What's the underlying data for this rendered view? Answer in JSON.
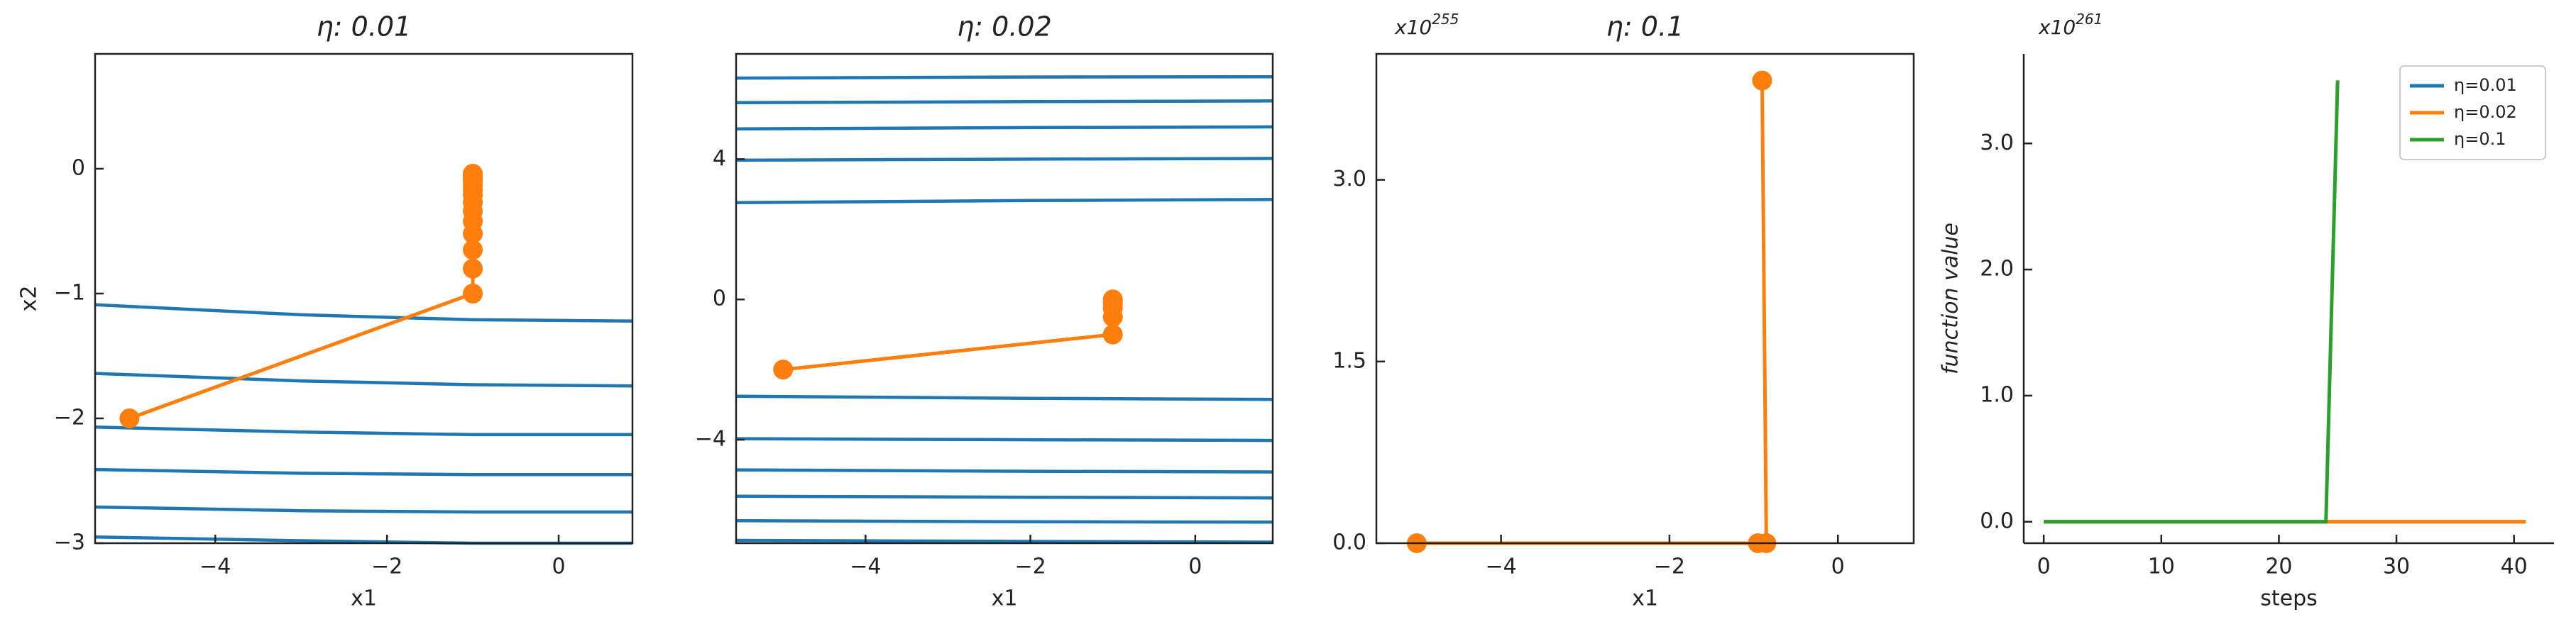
{
  "chart_data": [
    {
      "type": "line",
      "title": "η: 0.01",
      "xlabel": "x1",
      "ylabel": "x2",
      "xlim": [
        -5.4,
        0.86
      ],
      "ylim": [
        -3,
        0.92
      ],
      "xticks": [
        {
          "value": -4,
          "label": "−4"
        },
        {
          "value": -2,
          "label": "−2"
        },
        0
      ],
      "yticks": [
        {
          "value": -3,
          "label": "−3"
        },
        {
          "value": -2,
          "label": "−2"
        },
        {
          "value": -1,
          "label": "−1"
        },
        0
      ],
      "series": [
        {
          "color": "#1f77b4",
          "x": [
            -5.4,
            -3,
            -1,
            0.86
          ],
          "values": [
            -1.09,
            -1.17,
            -1.21,
            -1.22
          ]
        },
        {
          "color": "#1f77b4",
          "x": [
            -5.4,
            -3,
            -1,
            0.86
          ],
          "values": [
            -1.64,
            -1.7,
            -1.73,
            -1.74
          ]
        },
        {
          "color": "#1f77b4",
          "x": [
            -5.4,
            -3,
            -1,
            0.86
          ],
          "values": [
            -2.07,
            -2.11,
            -2.13,
            -2.13
          ]
        },
        {
          "color": "#1f77b4",
          "x": [
            -5.4,
            -3,
            -1,
            0.86
          ],
          "values": [
            -2.41,
            -2.44,
            -2.45,
            -2.45
          ]
        },
        {
          "color": "#1f77b4",
          "x": [
            -5.4,
            -3,
            -1,
            0.86
          ],
          "values": [
            -2.71,
            -2.74,
            -2.75,
            -2.75
          ]
        },
        {
          "color": "#1f77b4",
          "x": [
            -5.4,
            -3,
            -1,
            0.86
          ],
          "values": [
            -2.95,
            -2.98,
            -3.0,
            -3.0
          ]
        },
        {
          "color": "#ff7f0e",
          "markers": true,
          "x": [
            -5,
            -1,
            -1,
            -1,
            -1,
            -1,
            -1,
            -1,
            -1,
            -1,
            -1,
            -1,
            -1,
            -1,
            -1,
            -1
          ],
          "values": [
            -2,
            -1,
            -0.8,
            -0.65,
            -0.52,
            -0.42,
            -0.34,
            -0.27,
            -0.21,
            -0.17,
            -0.13,
            -0.1,
            -0.08,
            -0.06,
            -0.05,
            -0.04
          ]
        }
      ]
    },
    {
      "type": "line",
      "title": "η: 0.02",
      "xlabel": "x1",
      "xlim": [
        -5.57,
        0.94
      ],
      "ylim": [
        -6.95,
        7.0
      ],
      "xticks": [
        {
          "value": -4,
          "label": "−4"
        },
        {
          "value": -2,
          "label": "−2"
        },
        0
      ],
      "yticks": [
        {
          "value": -4,
          "label": "−4"
        },
        0,
        4
      ],
      "series": [
        {
          "color": "#1f77b4",
          "x": [
            -5.57,
            -2,
            0.94
          ],
          "values": [
            6.31,
            6.34,
            6.35
          ]
        },
        {
          "color": "#1f77b4",
          "x": [
            -5.57,
            -2,
            0.94
          ],
          "values": [
            5.61,
            5.64,
            5.66
          ]
        },
        {
          "color": "#1f77b4",
          "x": [
            -5.57,
            -2,
            0.94
          ],
          "values": [
            4.86,
            4.9,
            4.92
          ]
        },
        {
          "color": "#1f77b4",
          "x": [
            -5.57,
            -2,
            0.94
          ],
          "values": [
            3.97,
            4.0,
            4.02
          ]
        },
        {
          "color": "#1f77b4",
          "x": [
            -5.57,
            -2,
            0.94
          ],
          "values": [
            2.76,
            2.82,
            2.85
          ]
        },
        {
          "color": "#1f77b4",
          "x": [
            -5.57,
            -2,
            0.94
          ],
          "values": [
            -2.76,
            -2.82,
            -2.85
          ]
        },
        {
          "color": "#1f77b4",
          "x": [
            -5.57,
            -2,
            0.94
          ],
          "values": [
            -3.97,
            -4.0,
            -4.02
          ]
        },
        {
          "color": "#1f77b4",
          "x": [
            -5.57,
            -2,
            0.94
          ],
          "values": [
            -4.86,
            -4.9,
            -4.92
          ]
        },
        {
          "color": "#1f77b4",
          "x": [
            -5.57,
            -2,
            0.94
          ],
          "values": [
            -5.61,
            -5.64,
            -5.66
          ]
        },
        {
          "color": "#1f77b4",
          "x": [
            -5.57,
            -2,
            0.94
          ],
          "values": [
            -6.31,
            -6.34,
            -6.35
          ]
        },
        {
          "color": "#1f77b4",
          "x": [
            -5.57,
            -2,
            0.94
          ],
          "values": [
            -6.87,
            -6.9,
            -6.92
          ]
        },
        {
          "color": "#ff7f0e",
          "markers": true,
          "x": [
            -5,
            -1,
            -1,
            -1,
            -1,
            -1,
            -1
          ],
          "values": [
            -2,
            -1,
            -0.5,
            -0.25,
            -0.12,
            -0.05,
            0
          ]
        }
      ]
    },
    {
      "type": "line",
      "title": "η: 0.1",
      "xlabel": "x1",
      "offset_text": {
        "base": "x10",
        "exponent": "255"
      },
      "xlim": [
        -5.48,
        0.9
      ],
      "ylim": [
        0,
        4.04
      ],
      "xticks": [
        {
          "value": -4,
          "label": "−4"
        },
        {
          "value": -2,
          "label": "−2"
        },
        0
      ],
      "yticks": [
        {
          "value": 0,
          "label": "0.0"
        },
        1.5,
        {
          "value": 3,
          "label": "3.0"
        }
      ],
      "series": [
        {
          "color": "#ff7f0e",
          "markers": true,
          "x": [
            -5,
            -0.95,
            -0.85,
            -0.9
          ],
          "values": [
            0,
            0,
            0,
            3.82
          ]
        }
      ]
    },
    {
      "type": "line",
      "xlabel": "steps",
      "ylabel": "function value",
      "offset_text": {
        "base": "x10",
        "exponent": "261"
      },
      "xlim": [
        -1.7,
        43.4
      ],
      "ylim": [
        -0.17,
        3.71
      ],
      "xticks": [
        0,
        10,
        20,
        30,
        40
      ],
      "yticks": [
        {
          "value": 0,
          "label": "0.0"
        },
        {
          "value": 1,
          "label": "1.0"
        },
        {
          "value": 2,
          "label": "2.0"
        },
        {
          "value": 3,
          "label": "3.0"
        }
      ],
      "legend": "upper right",
      "x": [
        0,
        1,
        2,
        3,
        4,
        5,
        6,
        7,
        8,
        9,
        10,
        11,
        12,
        13,
        14,
        15,
        16,
        17,
        18,
        19,
        20,
        21,
        22,
        23,
        24,
        25,
        26,
        27,
        28,
        29,
        30,
        31,
        32,
        33,
        34,
        35,
        36,
        37,
        38,
        39,
        40,
        41
      ],
      "series": [
        {
          "name": "η=0.01",
          "color": "#1f77b4",
          "values": [
            0,
            0,
            0,
            0,
            0,
            0,
            0,
            0,
            0,
            0,
            0,
            0,
            0,
            0,
            0,
            0,
            0,
            0,
            0,
            0,
            0,
            0,
            0,
            0,
            0,
            0,
            0,
            0,
            0,
            0,
            0,
            0,
            0,
            0,
            0,
            0,
            0,
            0,
            0,
            0,
            0,
            0
          ]
        },
        {
          "name": "η=0.02",
          "color": "#ff7f0e",
          "values": [
            0,
            0,
            0,
            0,
            0,
            0,
            0,
            0,
            0,
            0,
            0,
            0,
            0,
            0,
            0,
            0,
            0,
            0,
            0,
            0,
            0,
            0,
            0,
            0,
            0,
            0,
            0,
            0,
            0,
            0,
            0,
            0,
            0,
            0,
            0,
            0,
            0,
            0,
            0,
            0,
            0,
            0
          ]
        },
        {
          "name": "η=0.1",
          "color": "#2ca02c",
          "values": [
            0,
            0,
            0,
            0,
            0,
            0,
            0,
            0,
            0,
            0,
            0,
            0,
            0,
            0,
            0,
            0,
            0,
            0,
            0,
            0,
            0,
            0,
            0,
            0,
            0,
            3.5,
            null,
            null,
            null,
            null,
            null,
            null,
            null,
            null,
            null,
            null,
            null,
            null,
            null,
            null,
            null,
            null
          ]
        }
      ]
    }
  ]
}
